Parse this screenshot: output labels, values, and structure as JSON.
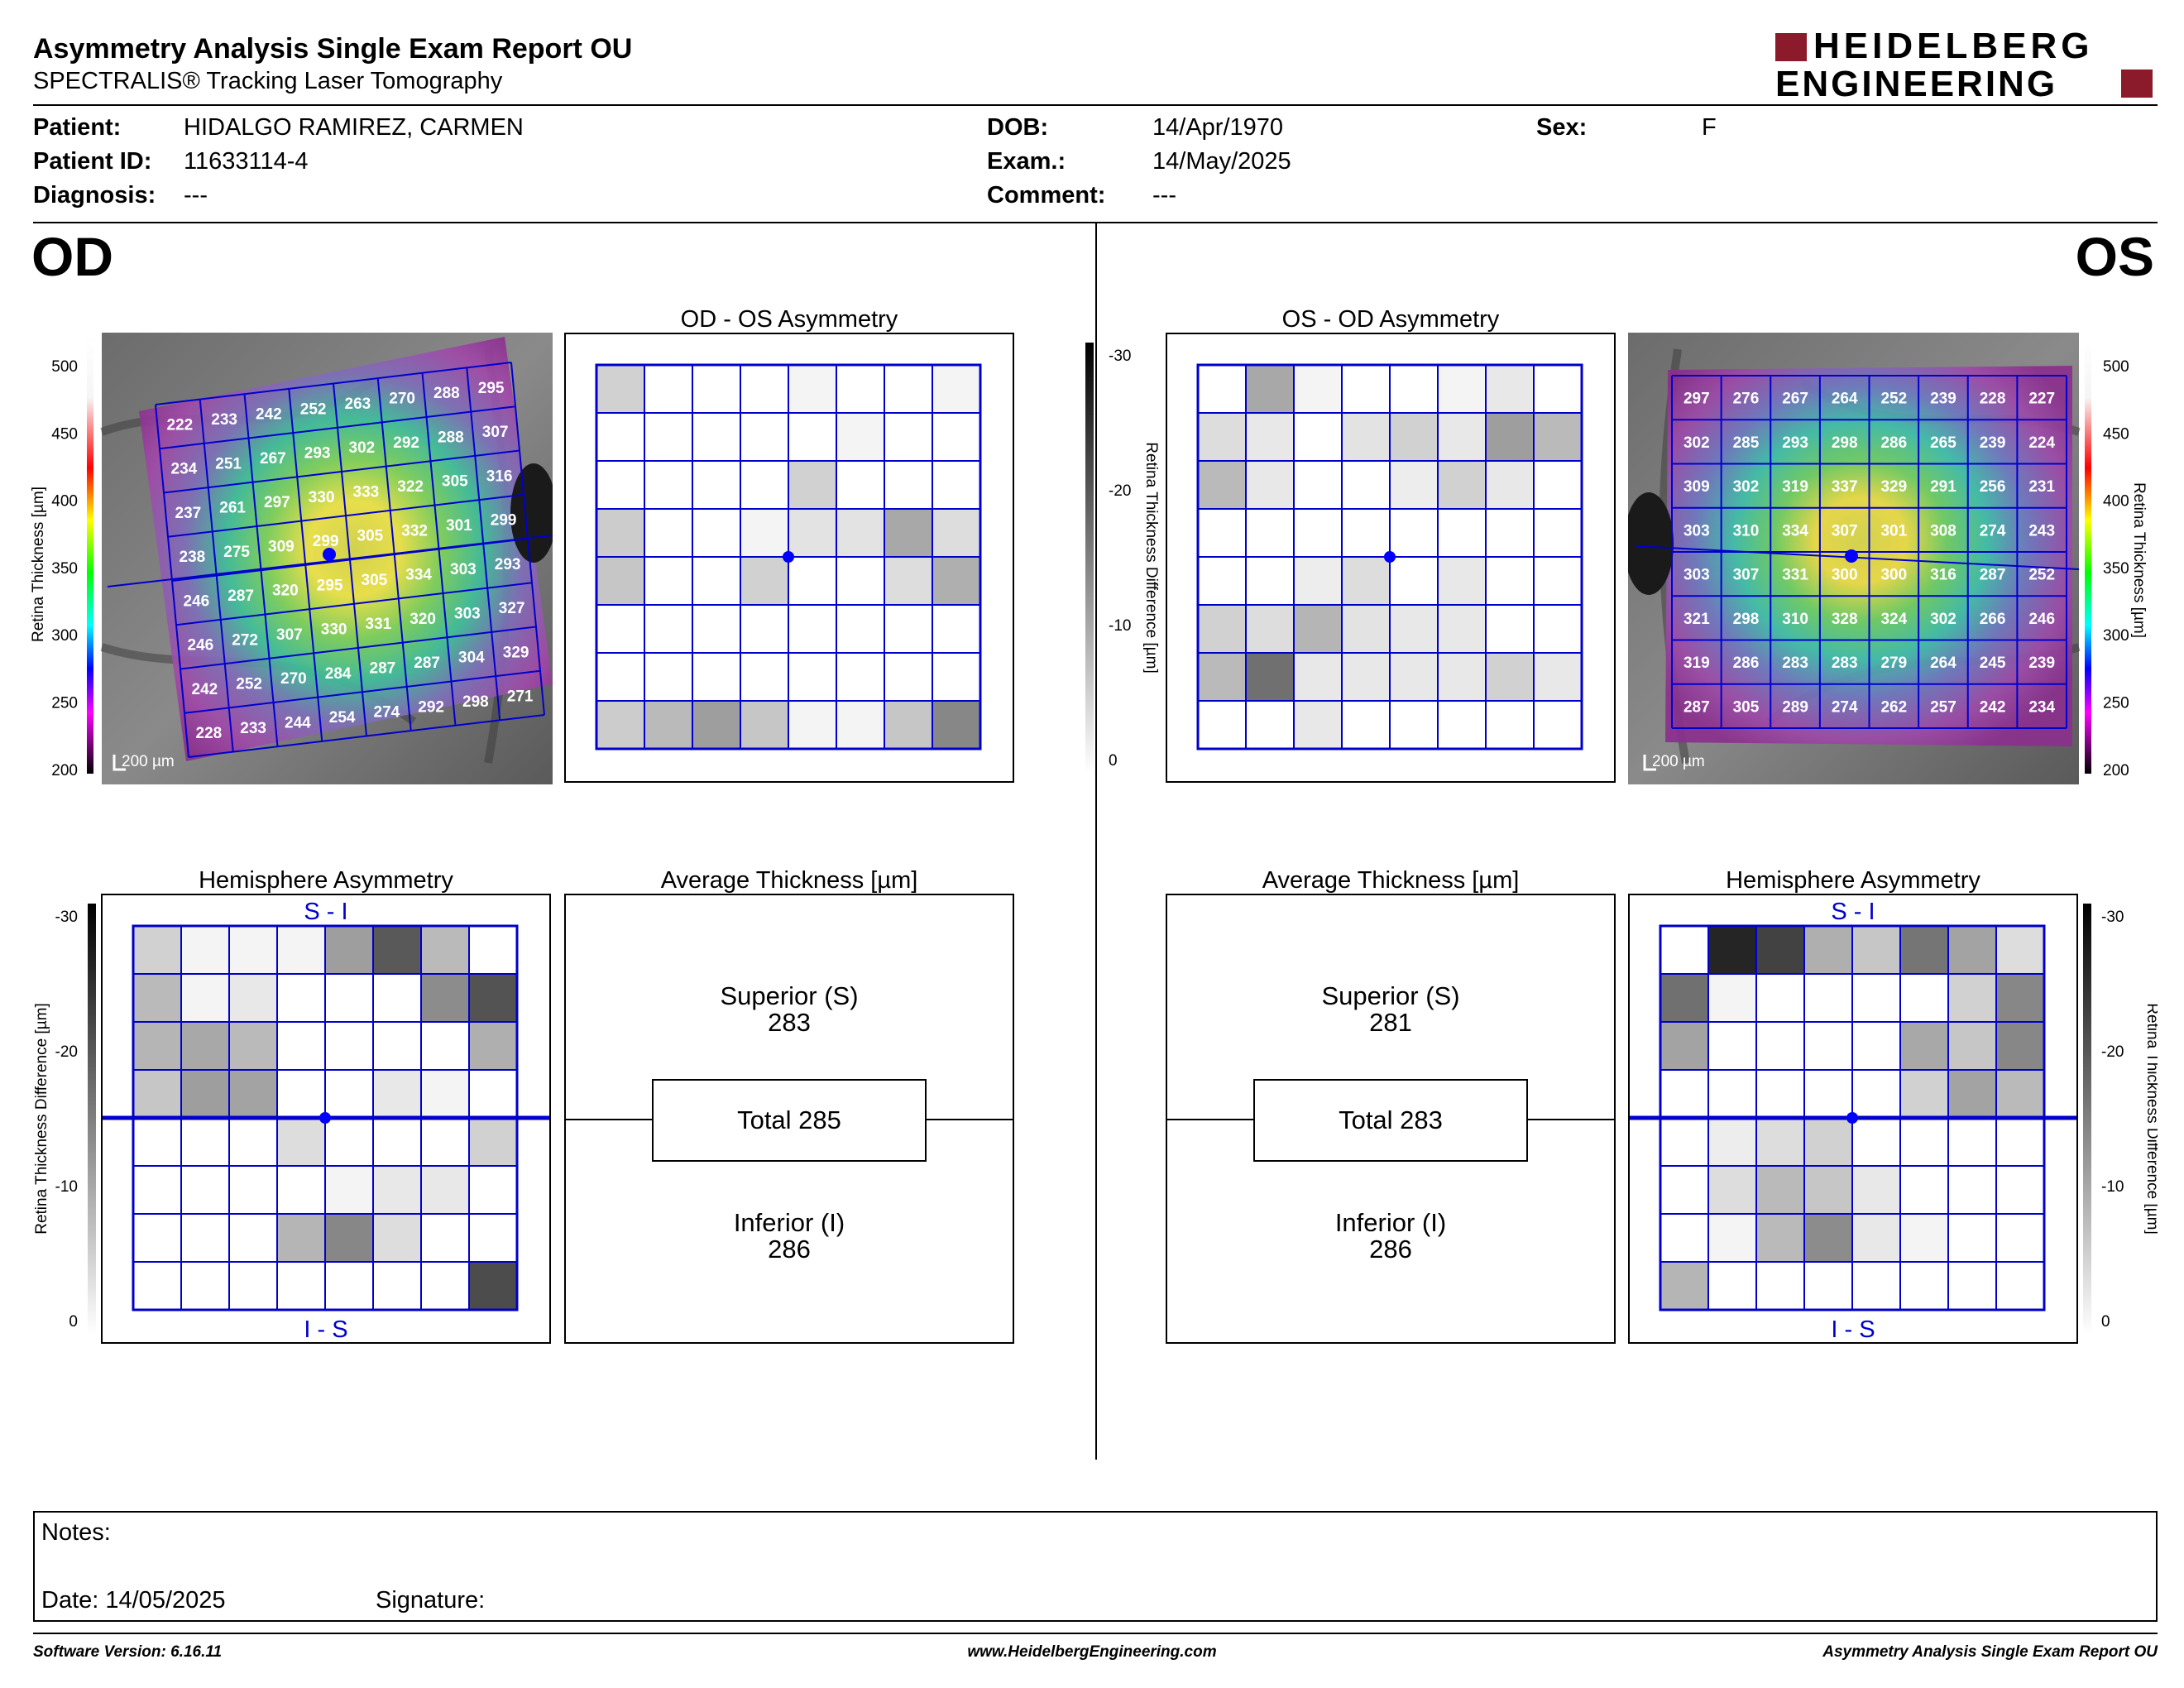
{
  "header": {
    "title": "Asymmetry Analysis Single Exam Report OU",
    "subtitle": "SPECTRALIS® Tracking Laser Tomography",
    "logo": {
      "line1": "HEIDELBERG",
      "line2": "ENGINEERING",
      "accent_color": "#8b1a2a"
    }
  },
  "patient": {
    "patient_label": "Patient:",
    "patient_value": "HIDALGO RAMIREZ, CARMEN",
    "id_label": "Patient ID:",
    "id_value": "11633114-4",
    "diagnosis_label": "Diagnosis:",
    "diagnosis_value": "---",
    "dob_label": "DOB:",
    "dob_value": "14/Apr/1970",
    "exam_label": "Exam.:",
    "exam_value": "14/May/2025",
    "comment_label": "Comment:",
    "comment_value": "---",
    "sex_label": "Sex:",
    "sex_value": "F"
  },
  "eyes": {
    "left_label": "OD",
    "right_label": "OS"
  },
  "scales": {
    "thickness_label": "Retina  Thickness [µm]",
    "thickness_ticks": [
      "500",
      "450",
      "400",
      "350",
      "300",
      "250",
      "200"
    ],
    "difference_label": "Retina Thickness Difference [µm]",
    "difference_ticks": [
      "-30",
      "-20",
      "-10",
      "0"
    ],
    "scale_bar": "200 µm"
  },
  "od": {
    "thickness_values": [
      [
        222,
        233,
        242,
        252,
        263,
        270,
        288,
        295
      ],
      [
        234,
        251,
        267,
        293,
        302,
        292,
        288,
        307
      ],
      [
        237,
        261,
        297,
        330,
        333,
        322,
        305,
        316
      ],
      [
        238,
        275,
        309,
        299,
        305,
        332,
        301,
        299
      ],
      [
        246,
        287,
        320,
        295,
        305,
        334,
        303,
        293
      ],
      [
        246,
        272,
        307,
        330,
        331,
        320,
        303,
        327
      ],
      [
        242,
        252,
        270,
        284,
        287,
        287,
        304,
        329
      ],
      [
        228,
        233,
        244,
        254,
        274,
        292,
        298,
        271
      ]
    ],
    "asymmetry_title": "OD - OS Asymmetry",
    "asymmetry_levels": [
      [
        0.2,
        0,
        0,
        0,
        0.05,
        0,
        0,
        0.05
      ],
      [
        0,
        0,
        0,
        0,
        0,
        0.05,
        0,
        0
      ],
      [
        0,
        0,
        0,
        0,
        0.2,
        0,
        0,
        0
      ],
      [
        0.22,
        0,
        0,
        0.05,
        0.12,
        0.12,
        0.38,
        0.15
      ],
      [
        0.25,
        0,
        0,
        0.2,
        0,
        0,
        0.15,
        0.35
      ],
      [
        0,
        0,
        0,
        0,
        0,
        0,
        0,
        0
      ],
      [
        0,
        0,
        0,
        0,
        0,
        0,
        0,
        0
      ],
      [
        0.22,
        0.3,
        0.42,
        0.25,
        0.05,
        0.05,
        0.25,
        0.52
      ]
    ],
    "hemisphere_title": "Hemisphere Asymmetry",
    "hemisphere_top_label": "S - I",
    "hemisphere_bottom_label": "I - S",
    "hemisphere_levels": [
      [
        0.2,
        0.05,
        0.05,
        0.05,
        0.42,
        0.72,
        0.3,
        0
      ],
      [
        0.3,
        0.05,
        0.1,
        0,
        0,
        0,
        0.5,
        0.75
      ],
      [
        0.32,
        0.38,
        0.3,
        0,
        0,
        0,
        0,
        0.35
      ],
      [
        0.25,
        0.42,
        0.4,
        0,
        0,
        0.1,
        0.05,
        0
      ],
      [
        0,
        0,
        0,
        0.15,
        0,
        0,
        0,
        0.2
      ],
      [
        0,
        0,
        0,
        0,
        0.05,
        0.1,
        0.1,
        0
      ],
      [
        0,
        0,
        0,
        0.32,
        0.52,
        0.15,
        0,
        0
      ],
      [
        0,
        0,
        0,
        0,
        0,
        0,
        0,
        0.78
      ]
    ],
    "average_title": "Average Thickness [µm]",
    "superior_label": "Superior (S)",
    "superior_value": "283",
    "total_label": "Total 285",
    "inferior_label": "Inferior (I)",
    "inferior_value": "286"
  },
  "os": {
    "thickness_values": [
      [
        297,
        276,
        267,
        264,
        252,
        239,
        228,
        227
      ],
      [
        302,
        285,
        293,
        298,
        286,
        265,
        239,
        224
      ],
      [
        309,
        302,
        319,
        337,
        329,
        291,
        256,
        231
      ],
      [
        303,
        310,
        334,
        307,
        301,
        308,
        274,
        243
      ],
      [
        303,
        307,
        331,
        300,
        300,
        316,
        287,
        252
      ],
      [
        321,
        298,
        310,
        328,
        324,
        302,
        266,
        246
      ],
      [
        319,
        286,
        283,
        283,
        279,
        264,
        245,
        239
      ],
      [
        287,
        305,
        289,
        274,
        262,
        257,
        242,
        234
      ]
    ],
    "asymmetry_title": "OS - OD Asymmetry",
    "asymmetry_levels": [
      [
        0,
        0.38,
        0.05,
        0,
        0,
        0.05,
        0.1,
        0
      ],
      [
        0.15,
        0.1,
        0,
        0.12,
        0.2,
        0.1,
        0.42,
        0.3
      ],
      [
        0.3,
        0.1,
        0,
        0,
        0.08,
        0.2,
        0.1,
        0
      ],
      [
        0,
        0,
        0,
        0,
        0,
        0,
        0,
        0
      ],
      [
        0,
        0,
        0.08,
        0.15,
        0,
        0.1,
        0,
        0
      ],
      [
        0.2,
        0.15,
        0.32,
        0.12,
        0.1,
        0.1,
        0,
        0
      ],
      [
        0.3,
        0.62,
        0.1,
        0.1,
        0.1,
        0.1,
        0.2,
        0.1
      ],
      [
        0,
        0,
        0.1,
        0,
        0,
        0,
        0,
        0
      ]
    ],
    "hemisphere_title": "Hemisphere Asymmetry",
    "hemisphere_top_label": "S - I",
    "hemisphere_bottom_label": "I - S",
    "hemisphere_levels": [
      [
        0,
        0.95,
        0.82,
        0.35,
        0.25,
        0.6,
        0.4,
        0.15
      ],
      [
        0.62,
        0.05,
        0,
        0,
        0,
        0,
        0.2,
        0.52
      ],
      [
        0.4,
        0,
        0,
        0,
        0,
        0.38,
        0.25,
        0.52
      ],
      [
        0,
        0,
        0,
        0,
        0,
        0.2,
        0.4,
        0.3
      ],
      [
        0,
        0.08,
        0.15,
        0.2,
        0,
        0,
        0,
        0
      ],
      [
        0,
        0.15,
        0.3,
        0.25,
        0.1,
        0,
        0,
        0
      ],
      [
        0,
        0.05,
        0.3,
        0.5,
        0.1,
        0.05,
        0,
        0
      ],
      [
        0.32,
        0,
        0,
        0,
        0,
        0,
        0,
        0
      ]
    ],
    "average_title": "Average Thickness [µm]",
    "superior_label": "Superior (S)",
    "superior_value": "281",
    "total_label": "Total 283",
    "inferior_label": "Inferior (I)",
    "inferior_value": "286"
  },
  "notes": {
    "notes_label": "Notes:",
    "date_label": "Date: 14/05/2025",
    "signature_label": "Signature:"
  },
  "footer": {
    "left": "Software Version: 6.16.11",
    "center": "www.HeidelbergEngineering.com",
    "right": "Asymmetry Analysis Single Exam Report OU"
  }
}
